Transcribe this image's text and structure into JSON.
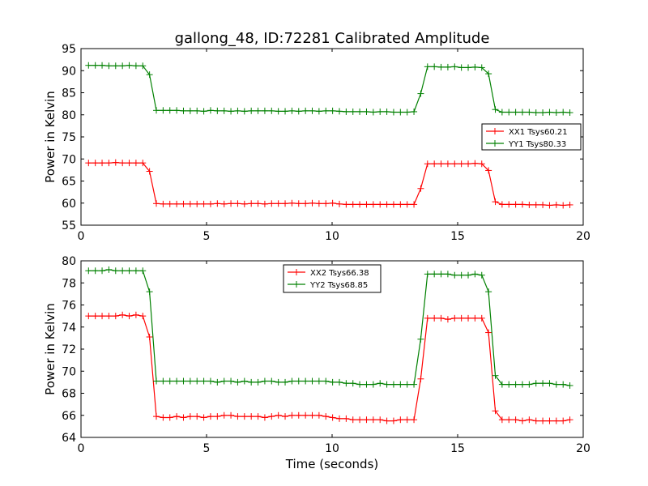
{
  "figure": {
    "title": "gallong_48, ID:72281 Calibrated Amplitude",
    "xlabel": "Time (seconds)"
  },
  "chart_data": [
    {
      "type": "line",
      "title": "gallong_48, ID:72281 Calibrated Amplitude",
      "xlabel": "",
      "ylabel": "Power in Kelvin",
      "xlim": [
        0,
        20
      ],
      "ylim": [
        55,
        95
      ],
      "xticks": [
        0,
        5,
        10,
        15,
        20
      ],
      "yticks": [
        55,
        60,
        65,
        70,
        75,
        80,
        85,
        90,
        95
      ],
      "grid": false,
      "legend": "center-right",
      "x": [
        0.3,
        0.57,
        0.84,
        1.11,
        1.38,
        1.65,
        1.92,
        2.19,
        2.46,
        2.73,
        3.0,
        3.27,
        3.54,
        3.81,
        4.08,
        4.35,
        4.62,
        4.89,
        5.16,
        5.43,
        5.7,
        5.97,
        6.24,
        6.51,
        6.78,
        7.05,
        7.32,
        7.59,
        7.86,
        8.13,
        8.4,
        8.67,
        8.94,
        9.21,
        9.48,
        9.75,
        10.02,
        10.29,
        10.56,
        10.83,
        11.1,
        11.37,
        11.64,
        11.91,
        12.18,
        12.45,
        12.72,
        12.99,
        13.26,
        13.53,
        13.8,
        14.07,
        14.34,
        14.61,
        14.88,
        15.15,
        15.42,
        15.69,
        15.96,
        16.23,
        16.5,
        16.77,
        17.04,
        17.31,
        17.58,
        17.85,
        18.12,
        18.39,
        18.66,
        18.93,
        19.2,
        19.47
      ],
      "series": [
        {
          "name": "XX1 Tsys60.21",
          "color": "#ff0000",
          "values": [
            69.1,
            69.1,
            69.1,
            69.1,
            69.2,
            69.1,
            69.1,
            69.1,
            69.1,
            67.2,
            59.9,
            59.8,
            59.8,
            59.8,
            59.8,
            59.8,
            59.8,
            59.8,
            59.8,
            59.9,
            59.8,
            59.9,
            59.9,
            59.8,
            59.9,
            59.9,
            59.8,
            59.9,
            59.9,
            59.9,
            60.0,
            59.9,
            59.9,
            60.0,
            59.9,
            59.9,
            60.0,
            59.8,
            59.7,
            59.7,
            59.7,
            59.7,
            59.7,
            59.7,
            59.7,
            59.7,
            59.7,
            59.7,
            59.7,
            63.3,
            68.9,
            68.9,
            68.9,
            68.9,
            68.9,
            68.9,
            68.9,
            69.0,
            68.9,
            67.4,
            60.3,
            59.7,
            59.7,
            59.7,
            59.7,
            59.6,
            59.6,
            59.6,
            59.5,
            59.6,
            59.5,
            59.6
          ]
        },
        {
          "name": "YY1 Tsys80.33",
          "color": "#008000",
          "values": [
            91.2,
            91.2,
            91.2,
            91.1,
            91.1,
            91.1,
            91.2,
            91.1,
            91.1,
            89.1,
            81.0,
            81.0,
            81.0,
            81.0,
            80.9,
            80.9,
            80.9,
            80.8,
            81.0,
            80.9,
            80.9,
            80.8,
            80.9,
            80.8,
            80.9,
            80.9,
            80.9,
            80.9,
            80.8,
            80.8,
            80.9,
            80.8,
            80.9,
            80.9,
            80.8,
            80.9,
            80.9,
            80.8,
            80.7,
            80.7,
            80.7,
            80.7,
            80.6,
            80.7,
            80.7,
            80.6,
            80.6,
            80.6,
            80.7,
            84.8,
            90.9,
            90.9,
            90.8,
            90.8,
            90.9,
            90.7,
            90.7,
            90.8,
            90.7,
            89.3,
            81.2,
            80.6,
            80.6,
            80.6,
            80.6,
            80.6,
            80.5,
            80.5,
            80.6,
            80.5,
            80.6,
            80.5
          ]
        }
      ]
    },
    {
      "type": "line",
      "title": "",
      "xlabel": "Time (seconds)",
      "ylabel": "Power in Kelvin",
      "xlim": [
        0,
        20
      ],
      "ylim": [
        64,
        80
      ],
      "xticks": [
        0,
        5,
        10,
        15,
        20
      ],
      "yticks": [
        64,
        66,
        68,
        70,
        72,
        74,
        76,
        78,
        80
      ],
      "grid": false,
      "legend": "top-center",
      "x": [
        0.3,
        0.57,
        0.84,
        1.11,
        1.38,
        1.65,
        1.92,
        2.19,
        2.46,
        2.73,
        3.0,
        3.27,
        3.54,
        3.81,
        4.08,
        4.35,
        4.62,
        4.89,
        5.16,
        5.43,
        5.7,
        5.97,
        6.24,
        6.51,
        6.78,
        7.05,
        7.32,
        7.59,
        7.86,
        8.13,
        8.4,
        8.67,
        8.94,
        9.21,
        9.48,
        9.75,
        10.02,
        10.29,
        10.56,
        10.83,
        11.1,
        11.37,
        11.64,
        11.91,
        12.18,
        12.45,
        12.72,
        12.99,
        13.26,
        13.53,
        13.8,
        14.07,
        14.34,
        14.61,
        14.88,
        15.15,
        15.42,
        15.69,
        15.96,
        16.23,
        16.5,
        16.77,
        17.04,
        17.31,
        17.58,
        17.85,
        18.12,
        18.39,
        18.66,
        18.93,
        19.2,
        19.47
      ],
      "series": [
        {
          "name": "XX2 Tsys66.38",
          "color": "#ff0000",
          "values": [
            75.0,
            75.0,
            75.0,
            75.0,
            75.0,
            75.1,
            75.0,
            75.1,
            75.0,
            73.1,
            65.9,
            65.8,
            65.8,
            65.9,
            65.8,
            65.9,
            65.9,
            65.8,
            65.9,
            65.9,
            66.0,
            66.0,
            65.9,
            65.9,
            65.9,
            65.9,
            65.8,
            65.9,
            66.0,
            65.9,
            66.0,
            66.0,
            66.0,
            66.0,
            66.0,
            65.9,
            65.8,
            65.7,
            65.7,
            65.6,
            65.6,
            65.6,
            65.6,
            65.6,
            65.5,
            65.5,
            65.6,
            65.6,
            65.6,
            69.3,
            74.8,
            74.8,
            74.8,
            74.7,
            74.8,
            74.8,
            74.8,
            74.8,
            74.8,
            73.5,
            66.4,
            65.6,
            65.6,
            65.6,
            65.5,
            65.6,
            65.5,
            65.5,
            65.5,
            65.5,
            65.5,
            65.6
          ]
        },
        {
          "name": "YY2 Tsys68.85",
          "color": "#008000",
          "values": [
            79.1,
            79.1,
            79.1,
            79.2,
            79.1,
            79.1,
            79.1,
            79.1,
            79.1,
            77.2,
            69.1,
            69.1,
            69.1,
            69.1,
            69.1,
            69.1,
            69.1,
            69.1,
            69.1,
            69.0,
            69.1,
            69.1,
            69.0,
            69.1,
            69.0,
            69.0,
            69.1,
            69.1,
            69.0,
            69.0,
            69.1,
            69.1,
            69.1,
            69.1,
            69.1,
            69.1,
            69.0,
            69.0,
            68.9,
            68.9,
            68.8,
            68.8,
            68.8,
            68.9,
            68.8,
            68.8,
            68.8,
            68.8,
            68.8,
            72.9,
            78.8,
            78.8,
            78.8,
            78.8,
            78.7,
            78.7,
            78.7,
            78.8,
            78.7,
            77.2,
            69.6,
            68.8,
            68.8,
            68.8,
            68.8,
            68.8,
            68.9,
            68.9,
            68.9,
            68.8,
            68.8,
            68.7
          ]
        }
      ]
    }
  ]
}
